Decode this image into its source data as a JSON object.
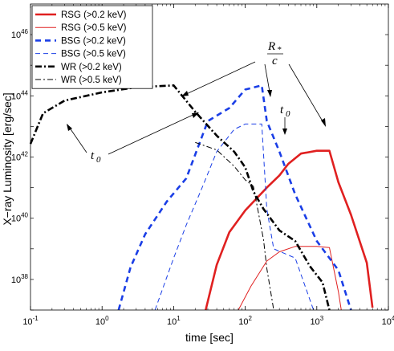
{
  "chart_data": {
    "type": "line",
    "xlabel": "time [sec]",
    "ylabel": "X−ray Luminosity [erg/sec]",
    "xscale": "log",
    "yscale": "log",
    "xlim": [
      0.1,
      10000
    ],
    "ylim": [
      1e+37,
      1e+47
    ],
    "x_ticks": [
      {
        "value": 0.1,
        "base": "10",
        "exp": "-1"
      },
      {
        "value": 1,
        "base": "10",
        "exp": "0"
      },
      {
        "value": 10,
        "base": "10",
        "exp": "1"
      },
      {
        "value": 100,
        "base": "10",
        "exp": "2"
      },
      {
        "value": 1000,
        "base": "10",
        "exp": "3"
      },
      {
        "value": 10000,
        "base": "10",
        "exp": "4"
      }
    ],
    "y_ticks": [
      {
        "value": 1e+38,
        "base": "10",
        "exp": "38"
      },
      {
        "value": 1e+40,
        "base": "10",
        "exp": "40"
      },
      {
        "value": 1e+42,
        "base": "10",
        "exp": "42"
      },
      {
        "value": 1e+44,
        "base": "10",
        "exp": "44"
      },
      {
        "value": 1e+46,
        "base": "10",
        "exp": "46"
      }
    ],
    "legend_position": "top-left",
    "grid": false,
    "series": [
      {
        "name": "RSG (>0.2 keV)",
        "color": "#e02020",
        "width": 2.6,
        "dash": "",
        "points": [
          [
            28,
            1e+37
          ],
          [
            40,
            3e+38
          ],
          [
            60,
            3.5e+39
          ],
          [
            100,
            1.8e+40
          ],
          [
            200,
            1e+41
          ],
          [
            300,
            2.5e+41
          ],
          [
            400,
            6e+41
          ],
          [
            600,
            1.3e+42
          ],
          [
            1000,
            1.6e+42
          ],
          [
            1500,
            1.6e+42
          ],
          [
            2000,
            1.5e+41
          ],
          [
            3000,
            1.3e+40
          ],
          [
            5000,
            3.5e+38
          ],
          [
            6000,
            1.2e+37
          ]
        ]
      },
      {
        "name": "RSG (>0.5 keV)",
        "color": "#e02020",
        "width": 1.0,
        "dash": "",
        "points": [
          [
            80,
            1e+37
          ],
          [
            120,
            6e+37
          ],
          [
            200,
            4e+38
          ],
          [
            300,
            8e+38
          ],
          [
            500,
            1.2e+39
          ],
          [
            1000,
            1.2e+39
          ],
          [
            1500,
            1.1e+39
          ],
          [
            2000,
            4e+37
          ],
          [
            2200,
            1e+37
          ]
        ]
      },
      {
        "name": "BSG (>0.2 keV)",
        "color": "#1a3ee6",
        "width": 2.6,
        "dash": "7,5",
        "points": [
          [
            1.7,
            1e+37
          ],
          [
            2.5,
            2.5e+38
          ],
          [
            4,
            3e+39
          ],
          [
            8,
            3.5e+40
          ],
          [
            15,
            2e+41
          ],
          [
            30,
            1.5e+43
          ],
          [
            60,
            4e+43
          ],
          [
            100,
            1.6e+44
          ],
          [
            170,
            2.2e+44
          ],
          [
            200,
            1.5e+43
          ],
          [
            300,
            1.5e+42
          ],
          [
            500,
            6e+40
          ],
          [
            1000,
            1.8e+39
          ],
          [
            2000,
            2e+38
          ],
          [
            3000,
            1e+37
          ]
        ]
      },
      {
        "name": "BSG (>0.5 keV)",
        "color": "#1a3ee6",
        "width": 1.0,
        "dash": "6,4",
        "points": [
          [
            5.5,
            1e+37
          ],
          [
            10,
            5e+38
          ],
          [
            15,
            6e+39
          ],
          [
            25,
            1e+41
          ],
          [
            40,
            1.5e+42
          ],
          [
            70,
            8e+42
          ],
          [
            100,
            1.2e+43
          ],
          [
            170,
            1.2e+43
          ],
          [
            200,
            2e+40
          ],
          [
            250,
            1e+39
          ],
          [
            500,
            5e+38
          ],
          [
            900,
            1e+37
          ]
        ]
      },
      {
        "name": "WR (>0.2 keV)",
        "color": "#000000",
        "width": 2.6,
        "dash": "8,3,2,3",
        "points": [
          [
            0.1,
            2.7e+42
          ],
          [
            0.15,
            2.7e+43
          ],
          [
            0.3,
            7e+43
          ],
          [
            1,
            1.3e+44
          ],
          [
            3,
            1.9e+44
          ],
          [
            10,
            2.2e+44
          ],
          [
            20,
            3e+43
          ],
          [
            40,
            5e+42
          ],
          [
            70,
            1.5e+42
          ],
          [
            100,
            4.6e+41
          ],
          [
            130,
            7.5e+40
          ],
          [
            180,
            2e+40
          ],
          [
            300,
            4e+39
          ],
          [
            500,
            1.8e+39
          ],
          [
            800,
            2.7e+38
          ],
          [
            1200,
            8e+37
          ],
          [
            1500,
            1e+37
          ]
        ]
      },
      {
        "name": "WR (>0.5 keV)",
        "color": "#000000",
        "width": 1.0,
        "dash": "7,3,2,3",
        "points": [
          [
            20,
            3e+42
          ],
          [
            40,
            1.7e+42
          ],
          [
            70,
            5e+41
          ],
          [
            100,
            1.8e+41
          ],
          [
            130,
            1.1e+41
          ],
          [
            180,
            2e+39
          ],
          [
            200,
            2.3e+38
          ],
          [
            250,
            1e+37
          ]
        ]
      }
    ],
    "annotations": {
      "rstar_num": "R",
      "rstar_sub": "*",
      "rstar_den": "c",
      "t0_left": "t",
      "t0_left_sub": "0",
      "t0_right": "t",
      "t0_right_sub": "0"
    }
  }
}
